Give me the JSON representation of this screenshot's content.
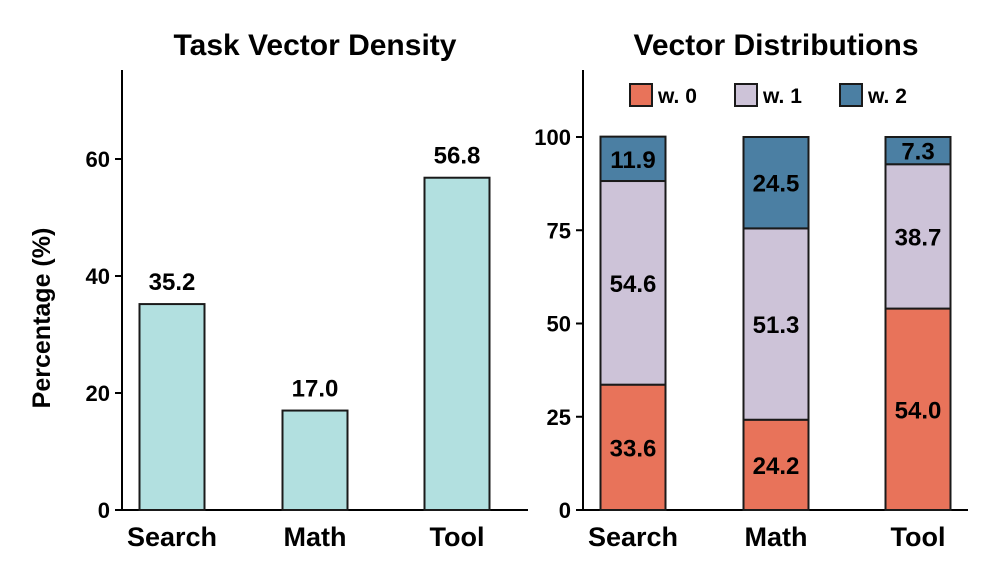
{
  "chart_data": [
    {
      "type": "bar",
      "title": "Task Vector Density",
      "xlabel": "",
      "ylabel": "Percentage (%)",
      "categories": [
        "Search",
        "Math",
        "Tool"
      ],
      "values": [
        35.2,
        17.0,
        56.8
      ],
      "value_labels": [
        "35.2",
        "17.0",
        "56.8"
      ],
      "ylim": [
        0,
        75
      ],
      "yticks": [
        "0",
        "20",
        "40",
        "60"
      ],
      "grid": false,
      "colors": {
        "bar": "#b2e0e0",
        "edge": "#1a1a1a"
      }
    },
    {
      "type": "bar",
      "stacked": true,
      "title": "Vector Distributions",
      "xlabel": "",
      "ylabel": "",
      "categories": [
        "Search",
        "Math",
        "Tool"
      ],
      "series": [
        {
          "name": "w. 0",
          "color": "#e8735a",
          "values": [
            33.6,
            24.2,
            54.0
          ],
          "labels": [
            "33.6",
            "24.2",
            "54.0"
          ]
        },
        {
          "name": "w. 1",
          "color": "#cdc3d8",
          "values": [
            54.6,
            51.3,
            38.7
          ],
          "labels": [
            "54.6",
            "51.3",
            "38.7"
          ]
        },
        {
          "name": "w. 2",
          "color": "#4b7fa3",
          "values": [
            11.9,
            24.5,
            7.3
          ],
          "labels": [
            "11.9",
            "24.5",
            "7.3"
          ]
        }
      ],
      "ylim": [
        0,
        118
      ],
      "yticks": [
        "0",
        "25",
        "50",
        "75",
        "100"
      ],
      "legend": "top",
      "grid": false
    }
  ]
}
